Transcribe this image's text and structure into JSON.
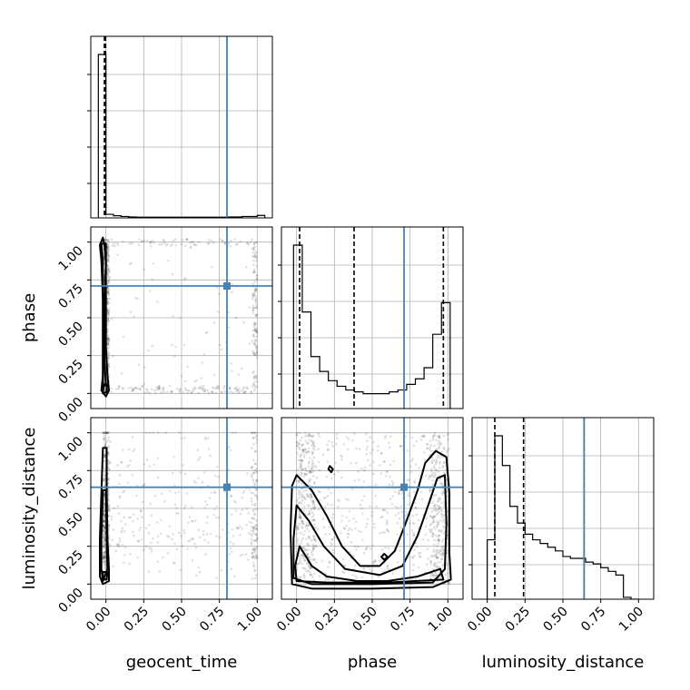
{
  "chart_data": {
    "type": "scatter",
    "style": "corner-plot",
    "parameters": [
      "geocent_time",
      "phase",
      "luminosity_distance"
    ],
    "tick_labels": [
      "0.00",
      "0.25",
      "0.50",
      "0.75",
      "1.00"
    ],
    "axis_range": [
      -0.1,
      1.1
    ],
    "grid": true,
    "truth_color": "#4682b4",
    "truths": {
      "geocent_time": 0.8,
      "phase": 0.71,
      "luminosity_distance": 0.64
    },
    "quantiles": {
      "geocent_time": [
        -0.01,
        -0.005,
        -0.002
      ],
      "phase": [
        0.02,
        0.38,
        0.97
      ],
      "luminosity_distance": [
        0.05,
        0.24,
        0.64
      ]
    },
    "histograms": {
      "geocent_time": {
        "bin_edges": [
          -0.05,
          0.0,
          0.05,
          0.1,
          0.15,
          0.2,
          0.3,
          0.4,
          0.5,
          0.6,
          0.7,
          0.8,
          0.9,
          1.0,
          1.05
        ],
        "counts": [
          0.92,
          0.02,
          0.012,
          0.008,
          0.005,
          0.004,
          0.004,
          0.004,
          0.004,
          0.004,
          0.004,
          0.005,
          0.008,
          0.014
        ]
      },
      "phase": {
        "bin_edges": [
          -0.02,
          0.0375,
          0.095,
          0.1525,
          0.21,
          0.2675,
          0.325,
          0.3825,
          0.44,
          0.4975,
          0.555,
          0.6125,
          0.67,
          0.7275,
          0.785,
          0.8425,
          0.9,
          0.9575,
          1.015
        ],
        "counts": [
          0.88,
          0.52,
          0.28,
          0.2,
          0.15,
          0.12,
          0.1,
          0.09,
          0.08,
          0.08,
          0.08,
          0.09,
          0.1,
          0.13,
          0.16,
          0.22,
          0.4,
          0.57
        ]
      },
      "luminosity_distance": {
        "bin_edges": [
          0.0,
          0.05,
          0.1,
          0.15,
          0.2,
          0.25,
          0.3,
          0.35,
          0.4,
          0.45,
          0.5,
          0.55,
          0.6,
          0.65,
          0.7,
          0.75,
          0.8,
          0.85,
          0.9,
          0.95,
          1.0
        ],
        "counts": [
          0.32,
          0.88,
          0.72,
          0.5,
          0.41,
          0.35,
          0.32,
          0.3,
          0.28,
          0.26,
          0.23,
          0.22,
          0.22,
          0.2,
          0.19,
          0.17,
          0.15,
          0.13,
          0.01,
          0.0
        ]
      }
    },
    "contours_2d": {
      "phase_vs_geocent_time": [
        [
          [
            -0.01,
            0.98
          ],
          [
            0.0,
            0.88
          ],
          [
            0.0,
            0.62
          ],
          [
            0.0,
            0.3
          ],
          [
            0.01,
            0.12
          ],
          [
            0.02,
            0.02
          ],
          [
            0.0,
            -0.02
          ],
          [
            -0.03,
            0.02
          ],
          [
            -0.02,
            0.12
          ],
          [
            -0.02,
            0.3
          ],
          [
            -0.02,
            0.62
          ],
          [
            -0.03,
            0.88
          ],
          [
            -0.04,
            0.98
          ],
          [
            -0.02,
            1.03
          ]
        ],
        [
          [
            0.0,
            0.99
          ],
          [
            0.0,
            0.86
          ],
          [
            -0.01,
            0.6
          ],
          [
            -0.01,
            0.2
          ],
          [
            0.0,
            0.06
          ],
          [
            -0.02,
            0.04
          ],
          [
            -0.02,
            0.2
          ],
          [
            -0.02,
            0.6
          ],
          [
            -0.02,
            0.86
          ],
          [
            -0.03,
            0.99
          ]
        ],
        [
          [
            0.005,
            0.06
          ],
          [
            0.005,
            0.01
          ],
          [
            -0.02,
            0.0
          ],
          [
            -0.015,
            0.06
          ]
        ]
      ],
      "luminosity_distance_vs_geocent_time": [
        [
          [
            0.005,
            0.9
          ],
          [
            0.005,
            0.6
          ],
          [
            0.01,
            0.3
          ],
          [
            0.02,
            0.1
          ],
          [
            0.02,
            0.02
          ],
          [
            -0.02,
            0.0
          ],
          [
            -0.04,
            0.05
          ],
          [
            -0.04,
            0.3
          ],
          [
            -0.03,
            0.6
          ],
          [
            -0.02,
            0.9
          ]
        ],
        [
          [
            0.0,
            0.62
          ],
          [
            0.005,
            0.3
          ],
          [
            0.01,
            0.1
          ],
          [
            -0.02,
            0.02
          ],
          [
            -0.03,
            0.1
          ],
          [
            -0.03,
            0.3
          ],
          [
            -0.02,
            0.62
          ]
        ],
        [
          [
            0.01,
            0.08
          ],
          [
            0.005,
            0.03
          ],
          [
            -0.02,
            0.03
          ],
          [
            -0.02,
            0.08
          ]
        ]
      ],
      "luminosity_distance_vs_phase": [
        [
          [
            0.0,
            0.72
          ],
          [
            0.1,
            0.62
          ],
          [
            0.2,
            0.45
          ],
          [
            0.3,
            0.25
          ],
          [
            0.42,
            0.12
          ],
          [
            0.55,
            0.12
          ],
          [
            0.65,
            0.22
          ],
          [
            0.72,
            0.4
          ],
          [
            0.8,
            0.62
          ],
          [
            0.85,
            0.8
          ],
          [
            0.92,
            0.88
          ],
          [
            0.99,
            0.84
          ],
          [
            1.01,
            0.6
          ],
          [
            1.01,
            0.2
          ],
          [
            1.02,
            0.03
          ],
          [
            0.9,
            -0.02
          ],
          [
            0.5,
            -0.03
          ],
          [
            0.1,
            -0.03
          ],
          [
            -0.03,
            0.0
          ],
          [
            -0.04,
            0.35
          ],
          [
            -0.03,
            0.65
          ]
        ],
        [
          [
            0.0,
            0.52
          ],
          [
            0.08,
            0.42
          ],
          [
            0.18,
            0.25
          ],
          [
            0.32,
            0.1
          ],
          [
            0.55,
            0.06
          ],
          [
            0.7,
            0.12
          ],
          [
            0.8,
            0.32
          ],
          [
            0.88,
            0.55
          ],
          [
            0.93,
            0.7
          ],
          [
            0.98,
            0.72
          ],
          [
            0.99,
            0.4
          ],
          [
            0.98,
            0.1
          ],
          [
            0.9,
            0.01
          ],
          [
            0.5,
            0.0
          ],
          [
            0.1,
            0.0
          ],
          [
            -0.02,
            0.04
          ],
          [
            -0.02,
            0.3
          ]
        ],
        [
          [
            0.02,
            0.25
          ],
          [
            0.1,
            0.12
          ],
          [
            0.2,
            0.05
          ],
          [
            0.4,
            0.02
          ],
          [
            0.6,
            0.02
          ],
          [
            0.8,
            0.05
          ],
          [
            0.95,
            0.1
          ],
          [
            0.97,
            0.03
          ],
          [
            0.6,
            0.01
          ],
          [
            0.2,
            0.01
          ],
          [
            0.0,
            0.02
          ],
          [
            -0.01,
            0.12
          ]
        ],
        [
          [
            0.22,
            0.78
          ],
          [
            0.24,
            0.76
          ],
          [
            0.23,
            0.74
          ],
          [
            0.21,
            0.76
          ]
        ],
        [
          [
            0.58,
            0.2
          ],
          [
            0.6,
            0.18
          ],
          [
            0.58,
            0.16
          ],
          [
            0.56,
            0.18
          ]
        ]
      ]
    }
  }
}
